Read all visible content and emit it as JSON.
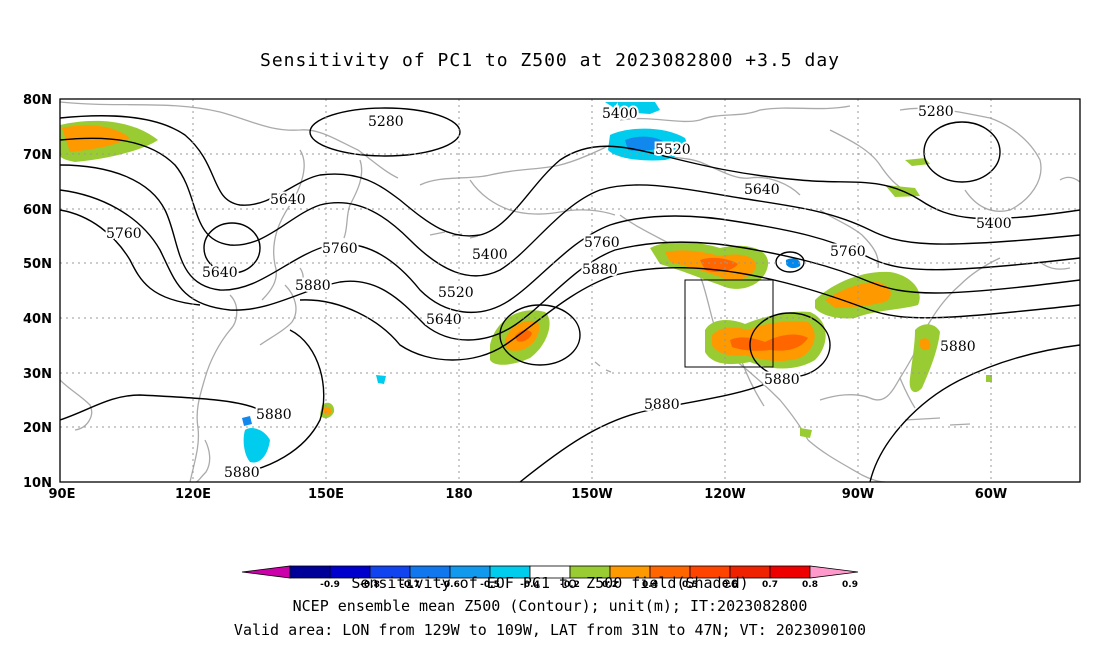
{
  "title": "Sensitivity of PC1 to Z500 at 2023082800 +3.5 day",
  "map": {
    "lat_labels": [
      "80N",
      "70N",
      "60N",
      "50N",
      "40N",
      "30N",
      "20N",
      "10N"
    ],
    "lon_labels": [
      "90E",
      "120E",
      "150E",
      "180",
      "150W",
      "120W",
      "90W",
      "60W"
    ],
    "contour_labels": [
      {
        "text": "5280"
      },
      {
        "text": "5280"
      },
      {
        "text": "5400"
      },
      {
        "text": "5520"
      },
      {
        "text": "5640"
      },
      {
        "text": "5760"
      },
      {
        "text": "5640"
      },
      {
        "text": "5760"
      },
      {
        "text": "5880"
      },
      {
        "text": "5400"
      },
      {
        "text": "5520"
      },
      {
        "text": "5640"
      },
      {
        "text": "5760"
      },
      {
        "text": "5880"
      },
      {
        "text": "5640"
      },
      {
        "text": "5760"
      },
      {
        "text": "5400"
      },
      {
        "text": "5880"
      },
      {
        "text": "5880"
      },
      {
        "text": "5880"
      },
      {
        "text": "5880"
      },
      {
        "text": "5880"
      }
    ],
    "valid_area": {
      "lon_from": "129W",
      "lon_to": "109W",
      "lat_from": "31N",
      "lat_to": "47N"
    },
    "colors": {
      "contour": "#000000",
      "coast": "#aaaaaa",
      "grid": "#999999",
      "green": "#99cc33",
      "orange": "#ff9900",
      "dark_orange": "#ff6600",
      "cyan": "#00ccee",
      "blue": "#0088ee"
    }
  },
  "colorbar": {
    "labels": [
      "-0.9",
      "-0.8",
      "-0.7",
      "-0.6",
      "-0.5",
      "-0.4",
      "-0.2",
      "0.2",
      "0.4",
      "0.5",
      "0.6",
      "0.7",
      "0.8",
      "0.9"
    ],
    "colors": [
      "#cc00aa",
      "#000099",
      "#0000cc",
      "#1144ee",
      "#1177ee",
      "#1199ee",
      "#00ccee",
      "#ffffff",
      "#99cc33",
      "#ff9900",
      "#ff6600",
      "#ff4400",
      "#ee2200",
      "#ee0000",
      "#ff99cc"
    ],
    "caption": "Sensitivity of EOF PC1 to Z500 field(Shaded)"
  },
  "captions": {
    "line2": "NCEP ensemble mean Z500 (Contour); unit(m); IT:2023082800",
    "line3": "Valid area: LON from 129W to 109W, LAT from 31N to 47N; VT: 2023090100"
  }
}
